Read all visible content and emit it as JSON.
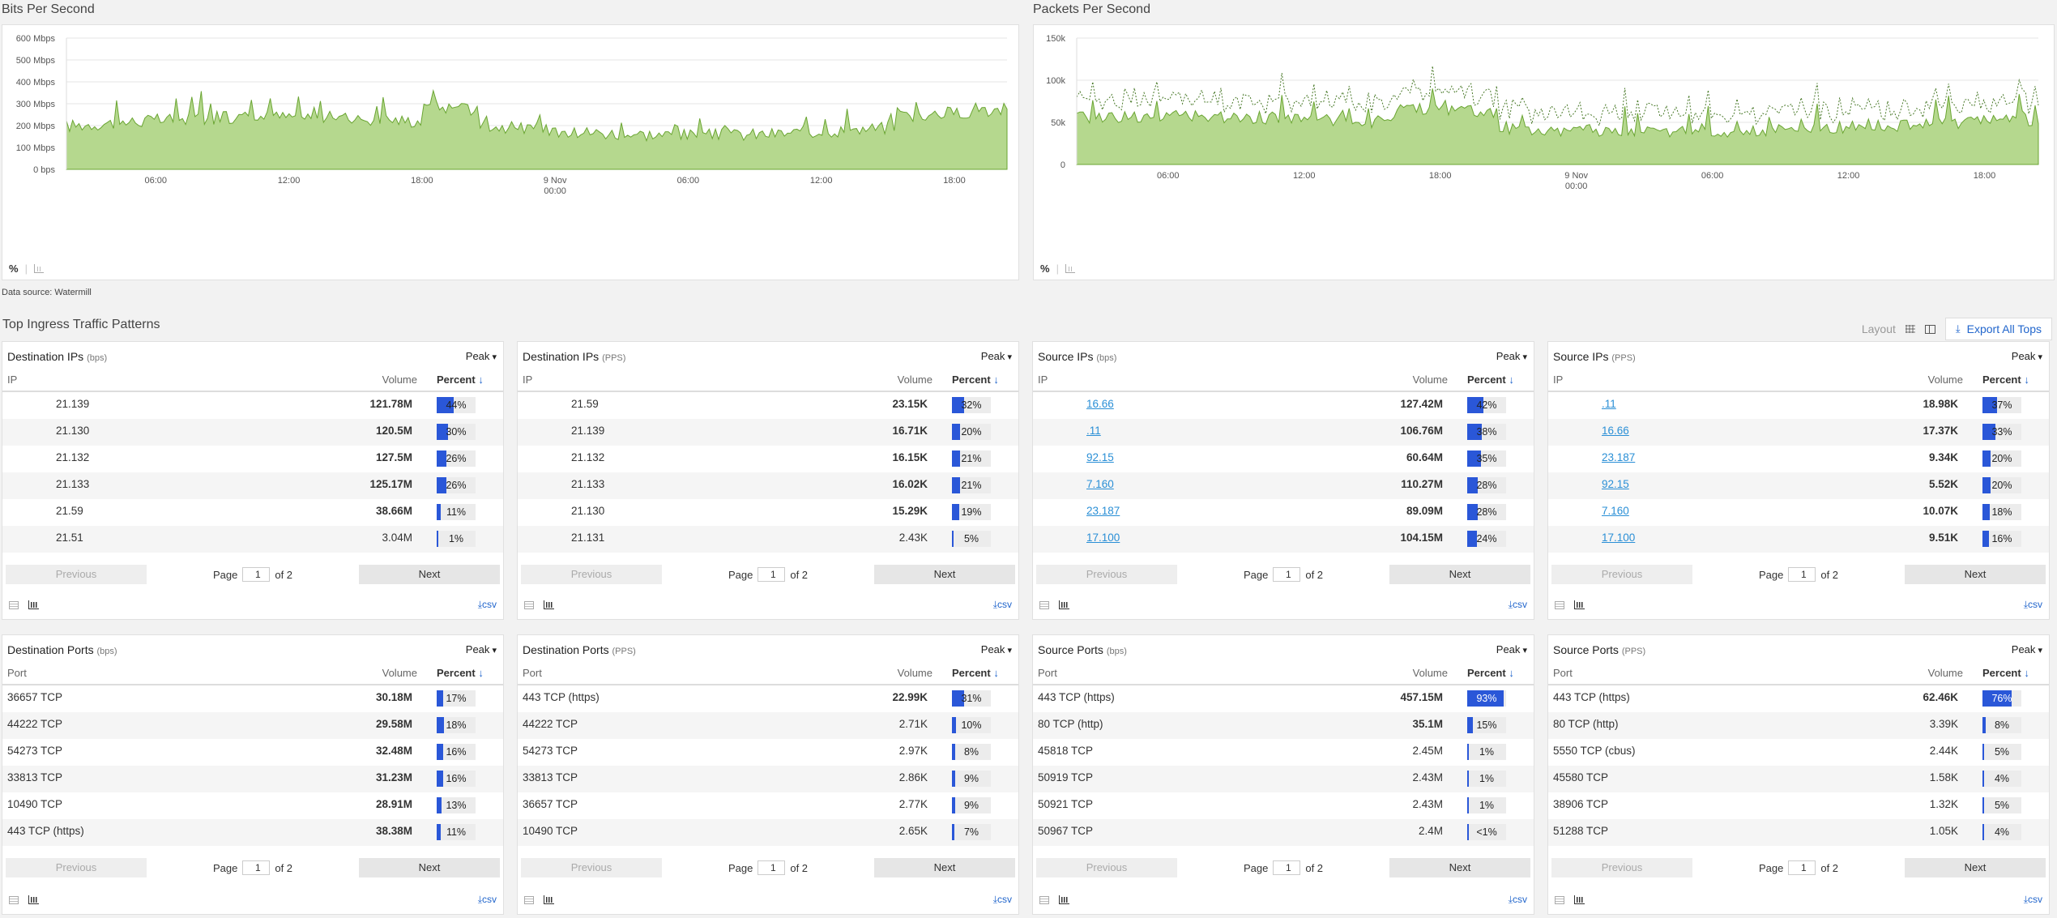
{
  "charts": [
    {
      "title": "Bits Per Second",
      "ylabels": [
        "600 Mbps",
        "500 Mbps",
        "400 Mbps",
        "300 Mbps",
        "200 Mbps",
        "100 Mbps",
        "0 bps"
      ],
      "xlabels": [
        "06:00",
        "12:00",
        "18:00",
        "9 Nov|00:00",
        "06:00",
        "12:00",
        "18:00"
      ],
      "footer_pct": "%"
    },
    {
      "title": "Packets Per Second",
      "ylabels": [
        "150k",
        "100k",
        "50k",
        "0"
      ],
      "xlabels": [
        "06:00",
        "12:00",
        "18:00",
        "9 Nov|00:00",
        "06:00",
        "12:00",
        "18:00"
      ],
      "footer_pct": "%"
    }
  ],
  "colors": {
    "area_fill": "#b5d88e",
    "area_line": "#6aa532",
    "accent_blue": "#2a57d8",
    "link": "#2a8fd6"
  },
  "data_source": "Data source: Watermill",
  "section_title": "Top Ingress Traffic Patterns",
  "toolbar": {
    "layout_label": "Layout",
    "export_label": "Export All Tops"
  },
  "pager": {
    "prev": "Previous",
    "page_label": "Page",
    "page_value": "1",
    "of_label": "of 2",
    "next": "Next"
  },
  "csv_label": "csv",
  "cards": [
    {
      "title": "Destination IPs",
      "unit": "(bps)",
      "peak": "Peak",
      "col_key": "IP",
      "col_vol": "Volume",
      "col_pct": "Percent",
      "links": false,
      "rows": [
        {
          "key": "21.139",
          "vol": "121.78M",
          "pct": "44%",
          "p": 0.44
        },
        {
          "key": "21.130",
          "vol": "120.5M",
          "pct": "30%",
          "p": 0.3
        },
        {
          "key": "21.132",
          "vol": "127.5M",
          "pct": "26%",
          "p": 0.26
        },
        {
          "key": "21.133",
          "vol": "125.17M",
          "pct": "26%",
          "p": 0.26
        },
        {
          "key": "21.59",
          "vol": "38.66M",
          "pct": "11%",
          "p": 0.11
        },
        {
          "key": "21.51",
          "vol": "3.04M",
          "pct": "1%",
          "p": 0.01,
          "light": true
        }
      ]
    },
    {
      "title": "Destination IPs",
      "unit": "(PPS)",
      "peak": "Peak",
      "col_key": "IP",
      "col_vol": "Volume",
      "col_pct": "Percent",
      "links": false,
      "rows": [
        {
          "key": "21.59",
          "vol": "23.15K",
          "pct": "32%",
          "p": 0.32
        },
        {
          "key": "21.139",
          "vol": "16.71K",
          "pct": "20%",
          "p": 0.2
        },
        {
          "key": "21.132",
          "vol": "16.15K",
          "pct": "21%",
          "p": 0.21
        },
        {
          "key": "21.133",
          "vol": "16.02K",
          "pct": "21%",
          "p": 0.21
        },
        {
          "key": "21.130",
          "vol": "15.29K",
          "pct": "19%",
          "p": 0.19
        },
        {
          "key": "21.131",
          "vol": "2.43K",
          "pct": "5%",
          "p": 0.05,
          "light": true
        }
      ]
    },
    {
      "title": "Source IPs",
      "unit": "(bps)",
      "peak": "Peak",
      "col_key": "IP",
      "col_vol": "Volume",
      "col_pct": "Percent",
      "links": true,
      "rows": [
        {
          "key": "16.66",
          "vol": "127.42M",
          "pct": "42%",
          "p": 0.42
        },
        {
          "key": ".11",
          "vol": "106.76M",
          "pct": "38%",
          "p": 0.38
        },
        {
          "key": "92.15",
          "vol": "60.64M",
          "pct": "35%",
          "p": 0.35
        },
        {
          "key": "7.160",
          "vol": "110.27M",
          "pct": "28%",
          "p": 0.28
        },
        {
          "key": "23.187",
          "vol": "89.09M",
          "pct": "28%",
          "p": 0.28
        },
        {
          "key": "17.100",
          "vol": "104.15M",
          "pct": "24%",
          "p": 0.24
        }
      ]
    },
    {
      "title": "Source IPs",
      "unit": "(PPS)",
      "peak": "Peak",
      "col_key": "IP",
      "col_vol": "Volume",
      "col_pct": "Percent",
      "links": true,
      "rows": [
        {
          "key": ".11",
          "vol": "18.98K",
          "pct": "37%",
          "p": 0.37
        },
        {
          "key": "16.66",
          "vol": "17.37K",
          "pct": "33%",
          "p": 0.33
        },
        {
          "key": "23.187",
          "vol": "9.34K",
          "pct": "20%",
          "p": 0.2
        },
        {
          "key": "92.15",
          "vol": "5.52K",
          "pct": "20%",
          "p": 0.2
        },
        {
          "key": "7.160",
          "vol": "10.07K",
          "pct": "18%",
          "p": 0.18
        },
        {
          "key": "17.100",
          "vol": "9.51K",
          "pct": "16%",
          "p": 0.16
        }
      ]
    },
    {
      "title": "Destination Ports",
      "unit": "(bps)",
      "peak": "Peak",
      "col_key": "Port",
      "col_vol": "Volume",
      "col_pct": "Percent",
      "links": false,
      "ports": true,
      "rows": [
        {
          "key": "36657 TCP",
          "vol": "30.18M",
          "pct": "17%",
          "p": 0.17
        },
        {
          "key": "44222 TCP",
          "vol": "29.58M",
          "pct": "18%",
          "p": 0.18
        },
        {
          "key": "54273 TCP",
          "vol": "32.48M",
          "pct": "16%",
          "p": 0.16
        },
        {
          "key": "33813 TCP",
          "vol": "31.23M",
          "pct": "16%",
          "p": 0.16
        },
        {
          "key": "10490 TCP",
          "vol": "28.91M",
          "pct": "13%",
          "p": 0.13
        },
        {
          "key": "443 TCP (https)",
          "vol": "38.38M",
          "pct": "11%",
          "p": 0.11
        }
      ]
    },
    {
      "title": "Destination Ports",
      "unit": "(PPS)",
      "peak": "Peak",
      "col_key": "Port",
      "col_vol": "Volume",
      "col_pct": "Percent",
      "links": false,
      "ports": true,
      "rows": [
        {
          "key": "443 TCP (https)",
          "vol": "22.99K",
          "pct": "31%",
          "p": 0.31
        },
        {
          "key": "44222 TCP",
          "vol": "2.71K",
          "pct": "10%",
          "p": 0.1,
          "light": true
        },
        {
          "key": "54273 TCP",
          "vol": "2.97K",
          "pct": "8%",
          "p": 0.08,
          "light": true
        },
        {
          "key": "33813 TCP",
          "vol": "2.86K",
          "pct": "9%",
          "p": 0.09,
          "light": true
        },
        {
          "key": "36657 TCP",
          "vol": "2.77K",
          "pct": "9%",
          "p": 0.09,
          "light": true
        },
        {
          "key": "10490 TCP",
          "vol": "2.65K",
          "pct": "7%",
          "p": 0.07,
          "light": true
        }
      ]
    },
    {
      "title": "Source Ports",
      "unit": "(bps)",
      "peak": "Peak",
      "col_key": "Port",
      "col_vol": "Volume",
      "col_pct": "Percent",
      "links": false,
      "ports": true,
      "rows": [
        {
          "key": "443 TCP (https)",
          "vol": "457.15M",
          "pct": "93%",
          "p": 0.93
        },
        {
          "key": "80 TCP (http)",
          "vol": "35.1M",
          "pct": "15%",
          "p": 0.15
        },
        {
          "key": "45818 TCP",
          "vol": "2.45M",
          "pct": "1%",
          "p": 0.01,
          "light": true
        },
        {
          "key": "50919 TCP",
          "vol": "2.43M",
          "pct": "1%",
          "p": 0.01,
          "light": true
        },
        {
          "key": "50921 TCP",
          "vol": "2.43M",
          "pct": "1%",
          "p": 0.01,
          "light": true
        },
        {
          "key": "50967 TCP",
          "vol": "2.4M",
          "pct": "<1%",
          "p": 0.005,
          "light": true
        }
      ]
    },
    {
      "title": "Source Ports",
      "unit": "(PPS)",
      "peak": "Peak",
      "col_key": "Port",
      "col_vol": "Volume",
      "col_pct": "Percent",
      "links": false,
      "ports": true,
      "rows": [
        {
          "key": "443 TCP (https)",
          "vol": "62.46K",
          "pct": "76%",
          "p": 0.76
        },
        {
          "key": "80 TCP (http)",
          "vol": "3.39K",
          "pct": "8%",
          "p": 0.08,
          "light": true
        },
        {
          "key": "5550 TCP (cbus)",
          "vol": "2.44K",
          "pct": "5%",
          "p": 0.05,
          "light": true
        },
        {
          "key": "45580 TCP",
          "vol": "1.58K",
          "pct": "4%",
          "p": 0.04,
          "light": true
        },
        {
          "key": "38906 TCP",
          "vol": "1.32K",
          "pct": "5%",
          "p": 0.05,
          "light": true
        },
        {
          "key": "51288 TCP",
          "vol": "1.05K",
          "pct": "4%",
          "p": 0.04,
          "light": true
        }
      ]
    }
  ]
}
